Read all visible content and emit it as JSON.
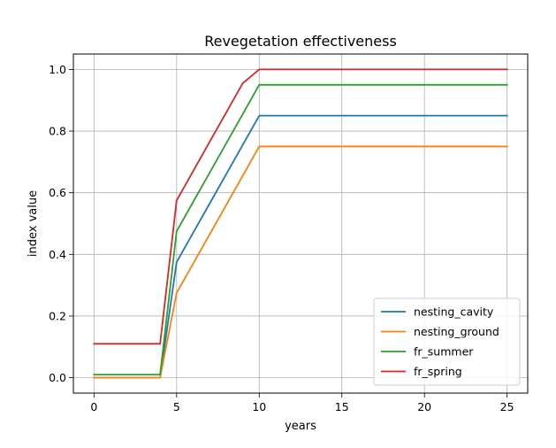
{
  "chart_data": {
    "type": "line",
    "title": "Revegetation effectiveness",
    "xlabel": "years",
    "ylabel": "index value",
    "xlim": [
      -1.25,
      26.25
    ],
    "ylim": [
      -0.05,
      1.05
    ],
    "xticks": [
      0,
      5,
      10,
      15,
      20,
      25
    ],
    "yticks": [
      0.0,
      0.2,
      0.4,
      0.6,
      0.8,
      1.0
    ],
    "xtick_labels": [
      "0",
      "5",
      "10",
      "15",
      "20",
      "25"
    ],
    "ytick_labels": [
      "0.0",
      "0.2",
      "0.4",
      "0.6",
      "0.8",
      "1.0"
    ],
    "grid": true,
    "legend_position": "lower-right",
    "series": [
      {
        "name": "nesting_cavity",
        "color": "#1f77b4",
        "x": [
          0,
          1,
          2,
          3,
          4,
          5,
          6,
          7,
          8,
          9,
          10,
          11,
          12,
          13,
          14,
          15,
          16,
          17,
          18,
          19,
          20,
          21,
          22,
          23,
          24,
          25
        ],
        "y": [
          0.0,
          0.0,
          0.0,
          0.0,
          0.0,
          0.375,
          0.47,
          0.565,
          0.66,
          0.755,
          0.85,
          0.85,
          0.85,
          0.85,
          0.85,
          0.85,
          0.85,
          0.85,
          0.85,
          0.85,
          0.85,
          0.85,
          0.85,
          0.85,
          0.85,
          0.85
        ]
      },
      {
        "name": "nesting_ground",
        "color": "#ff7f0e",
        "x": [
          0,
          1,
          2,
          3,
          4,
          5,
          6,
          7,
          8,
          9,
          10,
          11,
          12,
          13,
          14,
          15,
          16,
          17,
          18,
          19,
          20,
          21,
          22,
          23,
          24,
          25
        ],
        "y": [
          0.0,
          0.0,
          0.0,
          0.0,
          0.0,
          0.275,
          0.37,
          0.465,
          0.56,
          0.655,
          0.75,
          0.75,
          0.75,
          0.75,
          0.75,
          0.75,
          0.75,
          0.75,
          0.75,
          0.75,
          0.75,
          0.75,
          0.75,
          0.75,
          0.75,
          0.75
        ]
      },
      {
        "name": "fr_summer",
        "color": "#2ca02c",
        "x": [
          0,
          1,
          2,
          3,
          4,
          5,
          6,
          7,
          8,
          9,
          10,
          11,
          12,
          13,
          14,
          15,
          16,
          17,
          18,
          19,
          20,
          21,
          22,
          23,
          24,
          25
        ],
        "y": [
          0.01,
          0.01,
          0.01,
          0.01,
          0.01,
          0.475,
          0.57,
          0.665,
          0.76,
          0.855,
          0.95,
          0.95,
          0.95,
          0.95,
          0.95,
          0.95,
          0.95,
          0.95,
          0.95,
          0.95,
          0.95,
          0.95,
          0.95,
          0.95,
          0.95,
          0.95
        ]
      },
      {
        "name": "fr_spring",
        "color": "#d62728",
        "x": [
          0,
          1,
          2,
          3,
          4,
          5,
          6,
          7,
          8,
          9,
          10,
          11,
          12,
          13,
          14,
          15,
          16,
          17,
          18,
          19,
          20,
          21,
          22,
          23,
          24,
          25
        ],
        "y": [
          0.11,
          0.11,
          0.11,
          0.11,
          0.11,
          0.575,
          0.67,
          0.765,
          0.86,
          0.955,
          1.0,
          1.0,
          1.0,
          1.0,
          1.0,
          1.0,
          1.0,
          1.0,
          1.0,
          1.0,
          1.0,
          1.0,
          1.0,
          1.0,
          1.0,
          1.0
        ]
      }
    ]
  }
}
